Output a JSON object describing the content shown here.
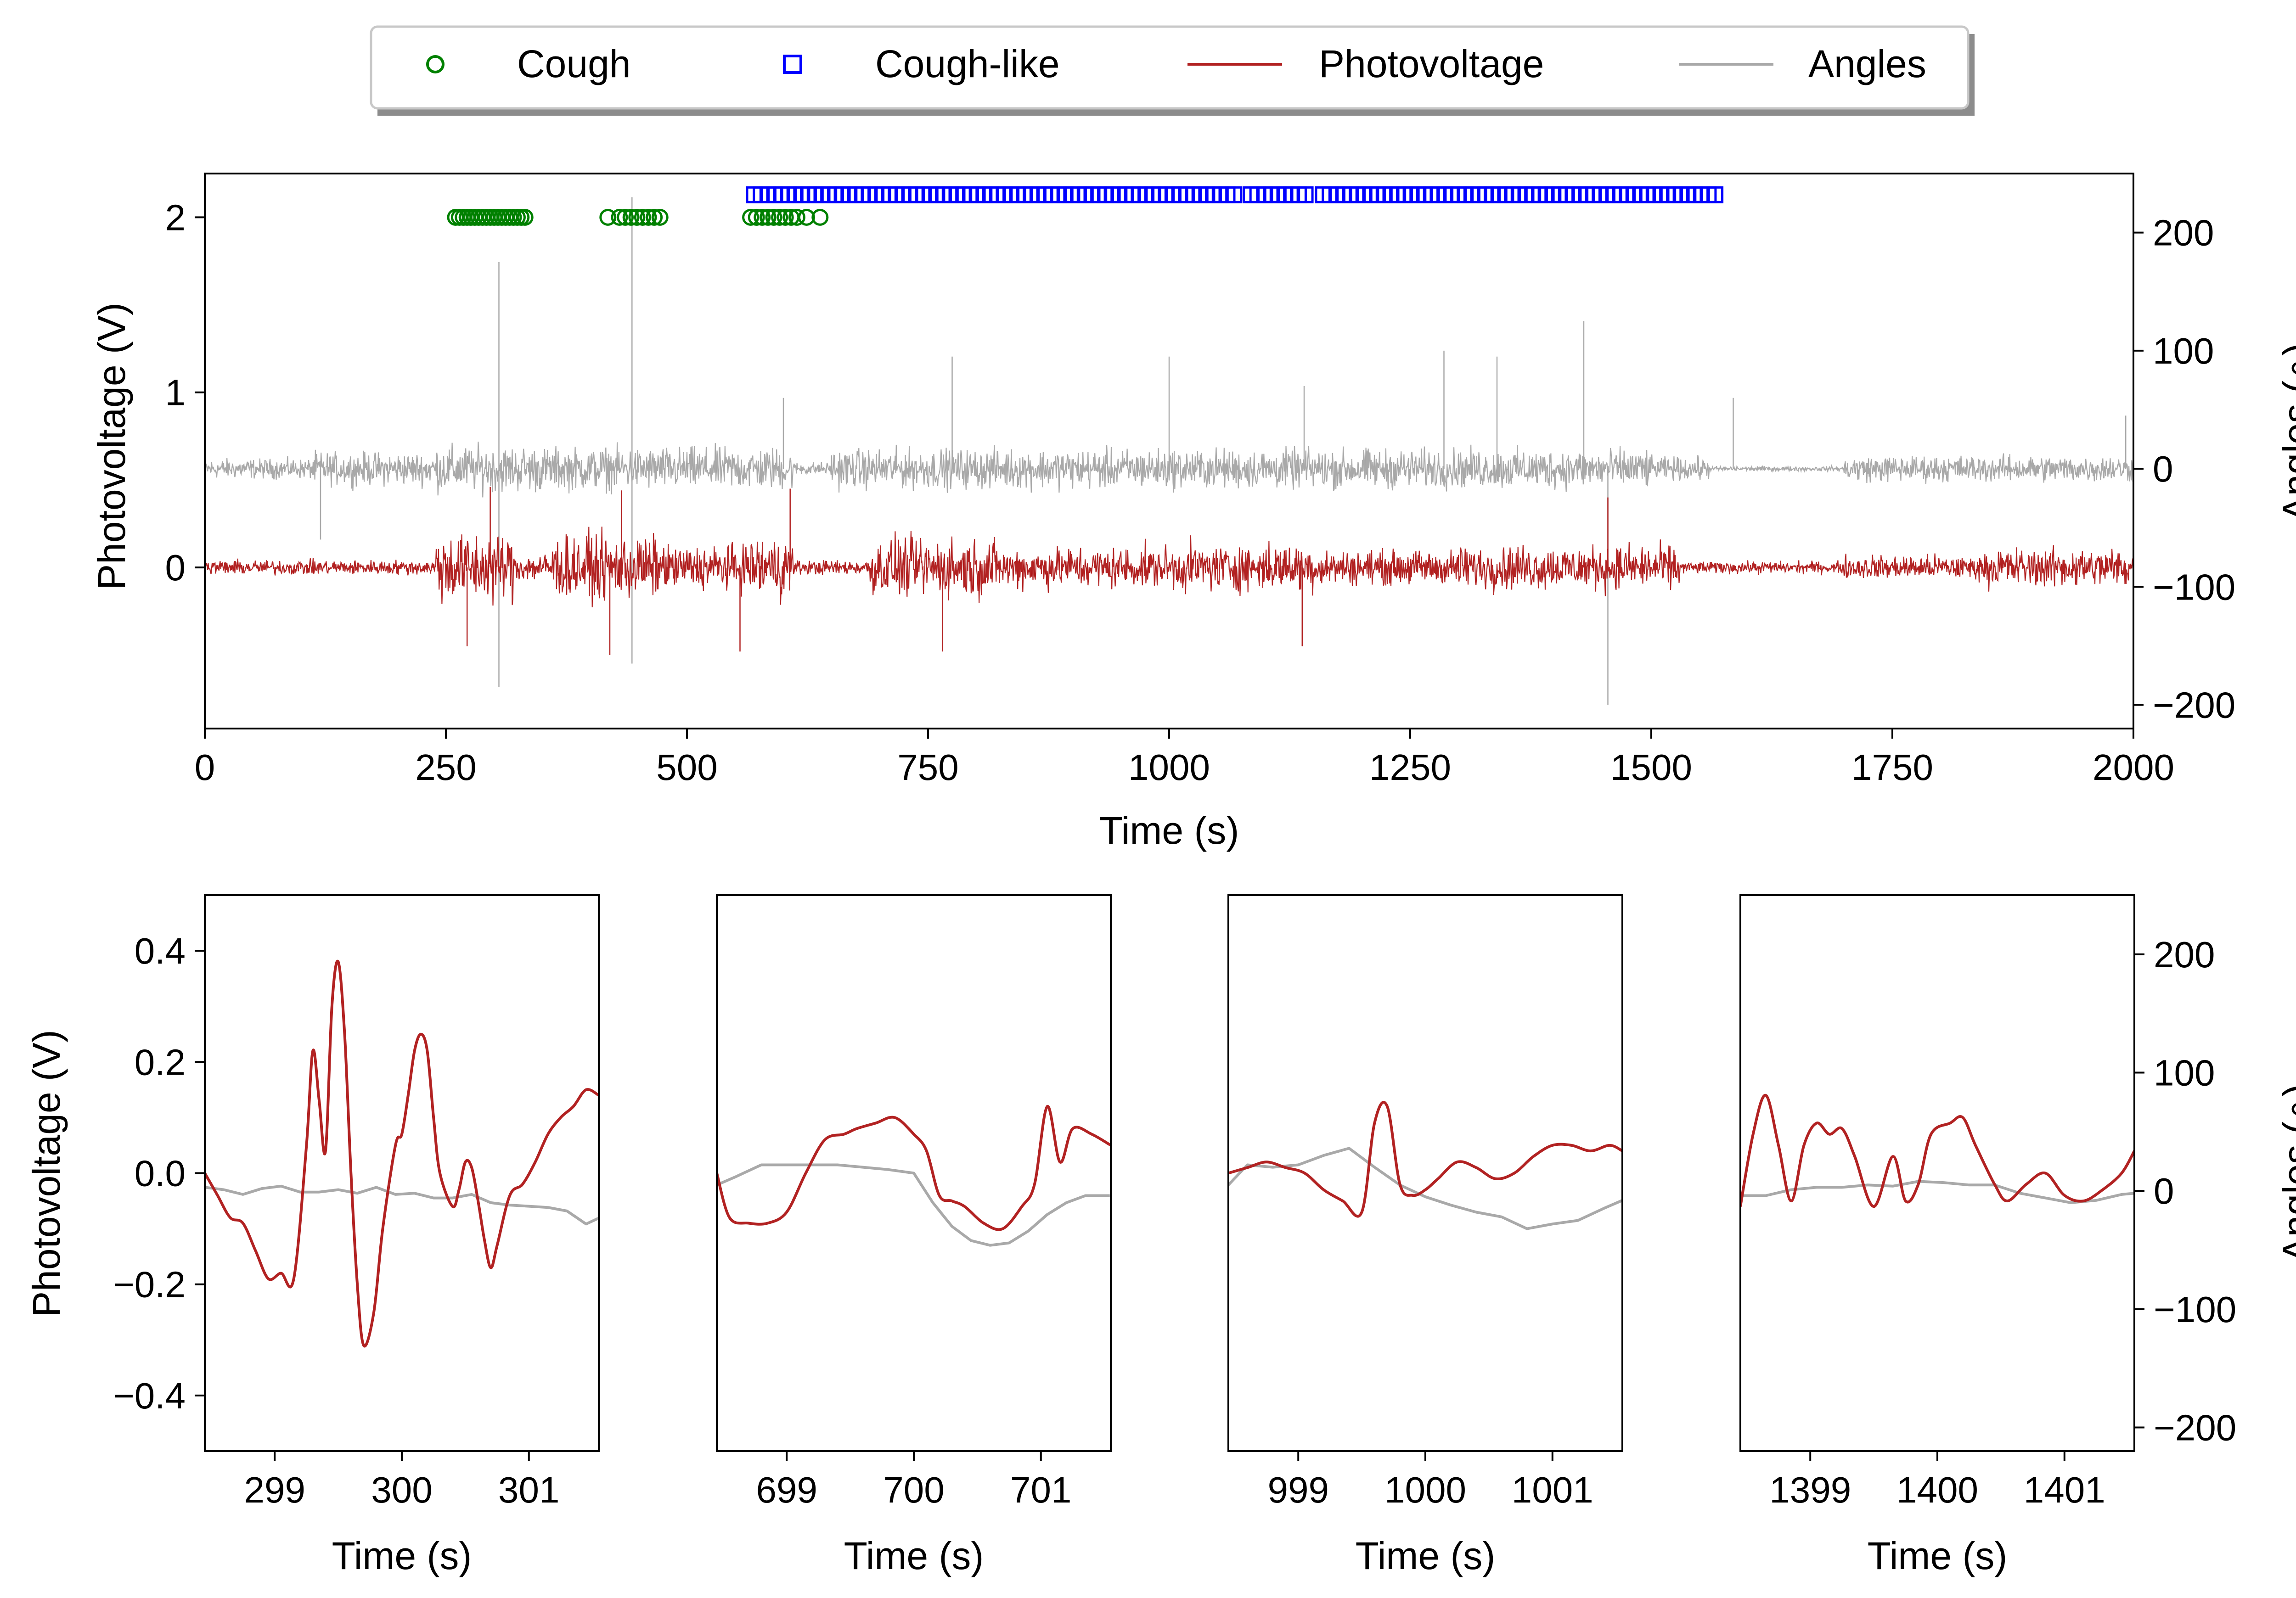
{
  "legend": {
    "placement": "top-center",
    "entries": [
      {
        "label": "Cough",
        "marker": "circle-open",
        "color": "#008000"
      },
      {
        "label": "Cough-like",
        "marker": "square-open",
        "color": "#0000ff"
      },
      {
        "label": "Photovoltage",
        "marker": "line",
        "color": "#b22222"
      },
      {
        "label": "Angles",
        "marker": "line",
        "color": "#a9a9a9"
      }
    ]
  },
  "colors": {
    "photovoltage": "#b22222",
    "angles": "#a9a9a9",
    "cough": "#008000",
    "cough_like": "#0000ff"
  },
  "chart_data": [
    {
      "id": "overview",
      "type": "line",
      "xlabel": "Time (s)",
      "ylabel": "Photovoltage (V)",
      "ylabel_right": "Angles (∘)",
      "xlim": [
        0,
        2000
      ],
      "ylim": [
        -0.92,
        2.25
      ],
      "ylim_right": [
        -220,
        250
      ],
      "xticks": [
        0,
        250,
        500,
        750,
        1000,
        1250,
        1500,
        1750,
        2000
      ],
      "yticks": [
        0,
        1,
        2
      ],
      "yticks_right": [
        -200,
        -100,
        0,
        100,
        200
      ],
      "grid": false,
      "series": [
        {
          "name": "Cough",
          "type": "scatter",
          "y_level": 2.0,
          "x": [
            260,
            264,
            268,
            272,
            276,
            280,
            284,
            288,
            292,
            296,
            300,
            304,
            308,
            312,
            316,
            320,
            324,
            328,
            332,
            418,
            430,
            436,
            442,
            448,
            454,
            460,
            466,
            472,
            566,
            572,
            578,
            584,
            590,
            596,
            602,
            608,
            614,
            624,
            638
          ]
        },
        {
          "name": "Cough-like",
          "type": "scatter",
          "y_level_right": 232,
          "x_ranges": [
            [
              570,
              1070
            ],
            [
              1085,
              1145
            ],
            [
              1160,
              1570
            ]
          ],
          "x_step": 7
        },
        {
          "name": "Photovoltage",
          "type": "line",
          "segments": [
            {
              "t0": 0,
              "t1": 240,
              "amp": 0.06
            },
            {
              "t0": 240,
              "t1": 320,
              "amp": 0.28
            },
            {
              "t0": 320,
              "t1": 360,
              "amp": 0.12
            },
            {
              "t0": 360,
              "t1": 470,
              "amp": 0.26
            },
            {
              "t0": 470,
              "t1": 560,
              "amp": 0.18
            },
            {
              "t0": 560,
              "t1": 610,
              "amp": 0.26
            },
            {
              "t0": 610,
              "t1": 690,
              "amp": 0.06
            },
            {
              "t0": 690,
              "t1": 820,
              "amp": 0.24
            },
            {
              "t0": 820,
              "t1": 1000,
              "amp": 0.17
            },
            {
              "t0": 1000,
              "t1": 1160,
              "amp": 0.19
            },
            {
              "t0": 1160,
              "t1": 1300,
              "amp": 0.14
            },
            {
              "t0": 1300,
              "t1": 1530,
              "amp": 0.18
            },
            {
              "t0": 1530,
              "t1": 1700,
              "amp": 0.05
            },
            {
              "t0": 1700,
              "t1": 1850,
              "amp": 0.1
            },
            {
              "t0": 1850,
              "t1": 2000,
              "amp": 0.16
            }
          ],
          "spikes": [
            [
              272,
              -0.45
            ],
            [
              296,
              0.46
            ],
            [
              420,
              -0.5
            ],
            [
              432,
              0.44
            ],
            [
              555,
              -0.48
            ],
            [
              607,
              0.45
            ],
            [
              765,
              -0.48
            ],
            [
              1138,
              -0.45
            ],
            [
              1455,
              0.4
            ]
          ]
        },
        {
          "name": "Angles",
          "type": "line",
          "axis": "right",
          "segments": [
            {
              "t0": 0,
              "t1": 110,
              "amp": 12
            },
            {
              "t0": 110,
              "t1": 240,
              "amp": 20
            },
            {
              "t0": 240,
              "t1": 350,
              "amp": 28
            },
            {
              "t0": 350,
              "t1": 610,
              "amp": 26
            },
            {
              "t0": 610,
              "t1": 650,
              "amp": 8
            },
            {
              "t0": 650,
              "t1": 1500,
              "amp": 24
            },
            {
              "t0": 1500,
              "t1": 1560,
              "amp": 14
            },
            {
              "t0": 1560,
              "t1": 1700,
              "amp": 3
            },
            {
              "t0": 1700,
              "t1": 2000,
              "amp": 16
            }
          ],
          "spikes": [
            [
              120,
              -60
            ],
            [
              305,
              175
            ],
            [
              305,
              -185
            ],
            [
              443,
              230
            ],
            [
              443,
              -165
            ],
            [
              600,
              60
            ],
            [
              775,
              95
            ],
            [
              1000,
              95
            ],
            [
              1140,
              70
            ],
            [
              1285,
              100
            ],
            [
              1340,
              95
            ],
            [
              1430,
              125
            ],
            [
              1455,
              -200
            ],
            [
              1585,
              60
            ],
            [
              1992,
              45
            ]
          ]
        }
      ]
    },
    {
      "id": "zoom-1",
      "type": "line",
      "xlabel": "Time (s)",
      "ylabel": "Photovoltage (V)",
      "xlim": [
        298.45,
        301.55
      ],
      "ylim": [
        -0.5,
        0.5
      ],
      "xticks": [
        299,
        300,
        301
      ],
      "yticks": [
        -0.4,
        -0.2,
        0.0,
        0.2,
        0.4
      ],
      "series": [
        {
          "name": "Photovoltage",
          "x": [
            298.45,
            298.55,
            298.65,
            298.75,
            298.85,
            298.95,
            299.05,
            299.15,
            299.25,
            299.3,
            299.35,
            299.4,
            299.45,
            299.5,
            299.55,
            299.6,
            299.65,
            299.7,
            299.78,
            299.85,
            299.95,
            300.0,
            300.05,
            300.1,
            300.15,
            300.2,
            300.25,
            300.3,
            300.4,
            300.45,
            300.5,
            300.55,
            300.6,
            300.65,
            300.7,
            300.75,
            300.85,
            300.95,
            301.05,
            301.15,
            301.25,
            301.35,
            301.45,
            301.55
          ],
          "y": [
            0.0,
            -0.04,
            -0.08,
            -0.09,
            -0.14,
            -0.19,
            -0.18,
            -0.19,
            0.05,
            0.22,
            0.13,
            0.04,
            0.3,
            0.38,
            0.25,
            0.0,
            -0.2,
            -0.31,
            -0.25,
            -0.1,
            0.05,
            0.07,
            0.14,
            0.22,
            0.25,
            0.22,
            0.1,
            0.0,
            -0.06,
            -0.03,
            0.02,
            0.01,
            -0.05,
            -0.12,
            -0.17,
            -0.13,
            -0.04,
            -0.02,
            0.02,
            0.07,
            0.1,
            0.12,
            0.15,
            0.14
          ]
        },
        {
          "name": "Angles",
          "axis": "right",
          "ylim": [
            -220,
            250
          ],
          "x": [
            298.45,
            298.6,
            298.75,
            298.9,
            299.05,
            299.2,
            299.35,
            299.5,
            299.65,
            299.8,
            299.95,
            300.1,
            300.25,
            300.4,
            300.55,
            300.7,
            300.85,
            301.0,
            301.15,
            301.3,
            301.45,
            301.55
          ],
          "y": [
            3,
            1,
            -3,
            2,
            4,
            -1,
            -1,
            1,
            -2,
            3,
            -3,
            -2,
            -6,
            -6,
            -3,
            -10,
            -12,
            -13,
            -14,
            -17,
            -28,
            -23
          ]
        }
      ]
    },
    {
      "id": "zoom-2",
      "type": "line",
      "xlabel": "Time (s)",
      "xlim": [
        698.45,
        701.55
      ],
      "ylim": [
        -0.5,
        0.5
      ],
      "xticks": [
        699,
        700,
        701
      ],
      "series": [
        {
          "name": "Photovoltage",
          "x": [
            698.45,
            698.55,
            698.7,
            698.85,
            699.0,
            699.15,
            699.3,
            699.45,
            699.55,
            699.7,
            699.85,
            700.0,
            700.1,
            700.2,
            700.3,
            700.4,
            700.55,
            700.7,
            700.85,
            700.95,
            701.05,
            701.15,
            701.25,
            701.4,
            701.55
          ],
          "y": [
            0.0,
            -0.08,
            -0.09,
            -0.09,
            -0.07,
            0.0,
            0.06,
            0.07,
            0.08,
            0.09,
            0.1,
            0.07,
            0.04,
            -0.04,
            -0.05,
            -0.06,
            -0.09,
            -0.1,
            -0.06,
            -0.02,
            0.12,
            0.02,
            0.08,
            0.07,
            0.05
          ]
        },
        {
          "name": "Angles",
          "axis": "right",
          "ylim": [
            -220,
            250
          ],
          "x": [
            698.45,
            698.6,
            698.8,
            699.0,
            699.2,
            699.4,
            699.6,
            699.8,
            700.0,
            700.15,
            700.3,
            700.45,
            700.6,
            700.75,
            700.9,
            701.05,
            701.2,
            701.35,
            701.55
          ],
          "y": [
            5,
            12,
            22,
            22,
            22,
            22,
            20,
            18,
            15,
            -10,
            -30,
            -42,
            -46,
            -44,
            -34,
            -20,
            -10,
            -4,
            -4
          ]
        }
      ]
    },
    {
      "id": "zoom-3",
      "type": "line",
      "xlabel": "Time (s)",
      "xlim": [
        998.45,
        1001.55
      ],
      "ylim": [
        -0.5,
        0.5
      ],
      "xticks": [
        999,
        1000,
        1001
      ],
      "xtick_labels": [
        "999",
        "1000",
        "1001"
      ],
      "series": [
        {
          "name": "Photovoltage",
          "x": [
            998.45,
            998.6,
            998.75,
            998.9,
            999.05,
            999.2,
            999.35,
            999.5,
            999.6,
            999.7,
            999.8,
            999.9,
            1000.0,
            1000.1,
            1000.25,
            1000.4,
            1000.55,
            1000.7,
            1000.85,
            1001.0,
            1001.15,
            1001.3,
            1001.45,
            1001.55
          ],
          "y": [
            0.0,
            0.01,
            0.02,
            0.01,
            0.0,
            -0.03,
            -0.05,
            -0.07,
            0.09,
            0.12,
            -0.02,
            -0.04,
            -0.03,
            -0.01,
            0.02,
            0.01,
            -0.01,
            0.0,
            0.03,
            0.05,
            0.05,
            0.04,
            0.05,
            0.04
          ]
        },
        {
          "name": "Angles",
          "axis": "right",
          "ylim": [
            -220,
            250
          ],
          "x": [
            998.45,
            998.6,
            998.8,
            999.0,
            999.2,
            999.4,
            999.6,
            999.8,
            1000.0,
            1000.2,
            1000.4,
            1000.6,
            1000.8,
            1001.0,
            1001.2,
            1001.4,
            1001.55
          ],
          "y": [
            5,
            22,
            20,
            22,
            30,
            36,
            20,
            5,
            -5,
            -12,
            -18,
            -22,
            -32,
            -28,
            -25,
            -15,
            -8
          ]
        }
      ]
    },
    {
      "id": "zoom-4",
      "type": "line",
      "xlabel": "Time (s)",
      "ylabel_right": "Angles (∘)",
      "xlim": [
        1398.45,
        1401.55
      ],
      "ylim": [
        -0.5,
        0.5
      ],
      "ylim_right": [
        -220,
        250
      ],
      "xticks": [
        1399,
        1400,
        1401
      ],
      "yticks_right": [
        -200,
        -100,
        0,
        100,
        200
      ],
      "series": [
        {
          "name": "Photovoltage",
          "x": [
            1398.45,
            1398.55,
            1398.65,
            1398.75,
            1398.85,
            1398.95,
            1399.05,
            1399.15,
            1399.25,
            1399.35,
            1399.5,
            1399.65,
            1399.75,
            1399.85,
            1399.95,
            1400.1,
            1400.2,
            1400.3,
            1400.45,
            1400.55,
            1400.7,
            1400.85,
            1401.0,
            1401.15,
            1401.3,
            1401.45,
            1401.55
          ],
          "y": [
            -0.06,
            0.07,
            0.14,
            0.05,
            -0.05,
            0.05,
            0.09,
            0.07,
            0.08,
            0.03,
            -0.06,
            0.03,
            -0.05,
            -0.02,
            0.07,
            0.09,
            0.1,
            0.05,
            -0.02,
            -0.05,
            -0.02,
            0.0,
            -0.04,
            -0.05,
            -0.03,
            0.0,
            0.04
          ]
        },
        {
          "name": "Angles",
          "axis": "right",
          "ylim": [
            -220,
            250
          ],
          "x": [
            1398.45,
            1398.65,
            1398.85,
            1399.05,
            1399.25,
            1399.45,
            1399.65,
            1399.85,
            1400.05,
            1400.25,
            1400.45,
            1400.65,
            1400.85,
            1401.05,
            1401.25,
            1401.45,
            1401.55
          ],
          "y": [
            -4,
            -4,
            1,
            3,
            3,
            5,
            4,
            8,
            7,
            5,
            5,
            -2,
            -6,
            -10,
            -8,
            -3,
            -2
          ]
        }
      ]
    }
  ]
}
